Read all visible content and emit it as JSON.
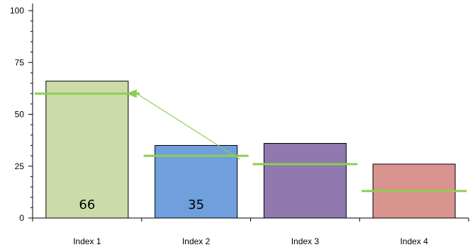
{
  "chart_data": {
    "type": "bar",
    "categories": [
      "Index 1",
      "Index 2",
      "Index 3",
      "Index 4"
    ],
    "values": [
      66,
      35,
      36,
      26
    ],
    "bar_colors": [
      "#ccdca8",
      "#6f9fdc",
      "#9079ae",
      "#d99490"
    ],
    "data_labels": [
      "66",
      "35",
      "",
      ""
    ],
    "markers": [
      60,
      30,
      26,
      13
    ],
    "marker_color": "#8ccf4d",
    "arrow": {
      "from_index": 1,
      "to_index": 0,
      "color": "#8ccf4d"
    },
    "yticks": [
      0,
      25,
      50,
      75,
      100
    ],
    "ylim": [
      0,
      100
    ],
    "title": "",
    "xlabel": "",
    "ylabel": "",
    "grid": false
  }
}
